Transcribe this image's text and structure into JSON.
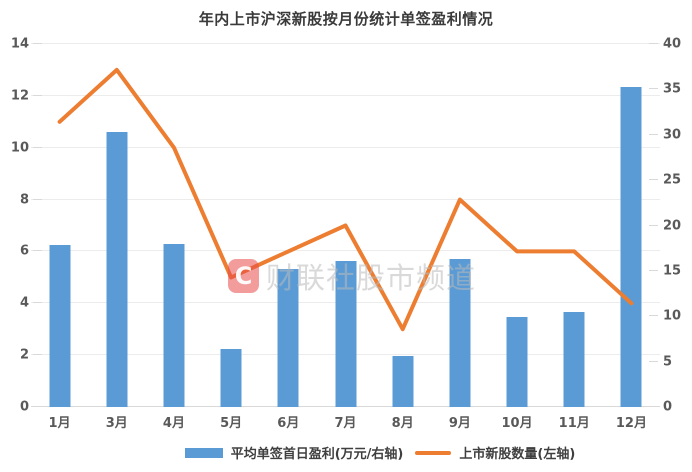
{
  "chart_data": {
    "type": "combo-bar-line",
    "title": "年内上市沪深新股按月份统计单签盈利情况",
    "categories": [
      "1月",
      "3月",
      "4月",
      "5月",
      "6月",
      "7月",
      "8月",
      "9月",
      "10月",
      "11月",
      "12月"
    ],
    "series": [
      {
        "name": "平均单签首日盈利(万元/右轴)",
        "type": "bar",
        "axis": "right",
        "color": "#5B9BD5",
        "values": [
          17.8,
          30.3,
          18.0,
          6.4,
          15.2,
          16.1,
          5.6,
          16.3,
          9.9,
          10.5,
          35.3
        ]
      },
      {
        "name": "上市新股数量(左轴)",
        "type": "line",
        "axis": "left",
        "color": "#ED7D31",
        "values": [
          11,
          13,
          10,
          5,
          6,
          7,
          3,
          8,
          6,
          6,
          4
        ]
      }
    ],
    "left_axis": {
      "min": 0,
      "max": 14,
      "step": 2,
      "ticks": [
        0,
        2,
        4,
        6,
        8,
        10,
        12,
        14
      ]
    },
    "right_axis": {
      "min": 0,
      "max": 40,
      "step": 5,
      "ticks": [
        0,
        5,
        10,
        15,
        20,
        25,
        30,
        35,
        40
      ]
    },
    "grid": true,
    "legend_position": "bottom"
  },
  "watermark": {
    "logo_text": "C",
    "text": "财联社股市频道",
    "logo_color": "#E84A4A",
    "text_color": "#B9B9B9"
  },
  "colors": {
    "bar": "#5B9BD5",
    "line": "#ED7D31",
    "grid": "#ECECEC",
    "axis_text": "#595959",
    "title_text": "#3A3A3A",
    "background": "#FFFFFF"
  }
}
